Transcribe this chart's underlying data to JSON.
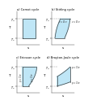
{
  "background": "#ffffff",
  "fill_color": "#b8e4f5",
  "fill_alpha": 0.9,
  "line_color": "#404040",
  "line_width": 0.5,
  "subplot_titles": [
    "a) Carnot cycle",
    "b) Stirling cycle",
    "c) Ericsson cycle",
    "d) Brayton-Joule cycle"
  ],
  "axis_label_fontsize": 3.2,
  "title_fontsize": 2.6,
  "tick_fontsize": 2.4,
  "ylabel_T": "T",
  "xlabel_s": "s",
  "T_H_label": "T_H",
  "T_C_label": "T_C",
  "dashed_color": "#999999",
  "dashed_lw": 0.35,
  "curve_label_fontsize": 2.0
}
